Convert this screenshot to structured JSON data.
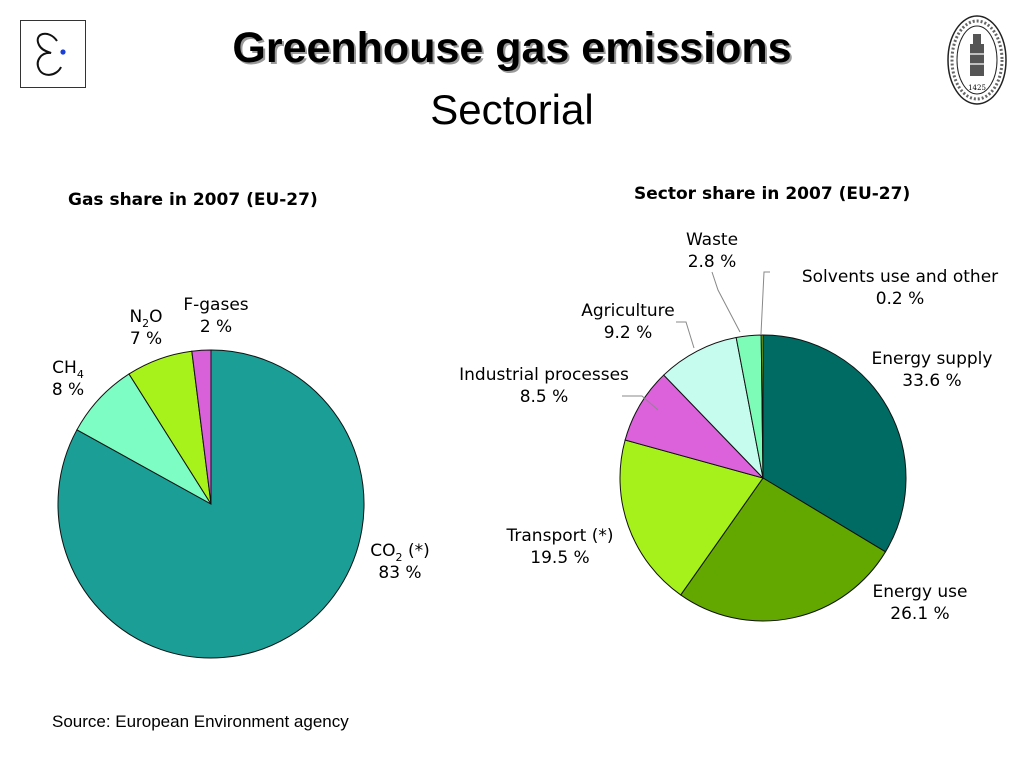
{
  "slide": {
    "title": "Greenhouse gas emissions",
    "subtitle": "Sectorial",
    "source": "Source: European Environment agency",
    "logo_left_icon": "epsilon-logo-icon",
    "logo_right_icon": "university-seal-icon",
    "logo_right_year": "1425"
  },
  "chart_data": [
    {
      "type": "pie",
      "title": "Gas share in 2007 (EU-27)",
      "slices": [
        {
          "label": "CO",
          "sub": "2",
          "suffix": " (*)",
          "value_label": "83 %",
          "value": 83,
          "color": "#1a9e96"
        },
        {
          "label": "CH",
          "sub": "4",
          "suffix": "",
          "value_label": "8 %",
          "value": 8,
          "color": "#7dfcc4"
        },
        {
          "label": "N",
          "sub": "2",
          "suffix": "O",
          "value_label": "7 %",
          "value": 7,
          "color": "#a8f21c"
        },
        {
          "label": "F-gases",
          "sub": "",
          "suffix": "",
          "value_label": "2 %",
          "value": 2,
          "color": "#d860d8"
        }
      ]
    },
    {
      "type": "pie",
      "title": "Sector share in 2007 (EU-27)",
      "slices": [
        {
          "label": "Energy supply",
          "value_label": "33.6 %",
          "value": 33.6,
          "color": "#006b62"
        },
        {
          "label": "Energy use",
          "value_label": "26.1 %",
          "value": 26.1,
          "color": "#62a800"
        },
        {
          "label": "Transport (*)",
          "value_label": "19.5 %",
          "value": 19.5,
          "color": "#a6f01c"
        },
        {
          "label": "Industrial processes",
          "value_label": "8.5 %",
          "value": 8.5,
          "color": "#dc62dc"
        },
        {
          "label": "Agriculture",
          "value_label": "9.2 %",
          "value": 9.2,
          "color": "#c6fcee"
        },
        {
          "label": "Waste",
          "value_label": "2.8 %",
          "value": 2.8,
          "color": "#7dfcb8"
        },
        {
          "label": "Solvents use and other",
          "value_label": "0.2 %",
          "value": 0.2,
          "color": "#a8f21c"
        }
      ]
    }
  ]
}
